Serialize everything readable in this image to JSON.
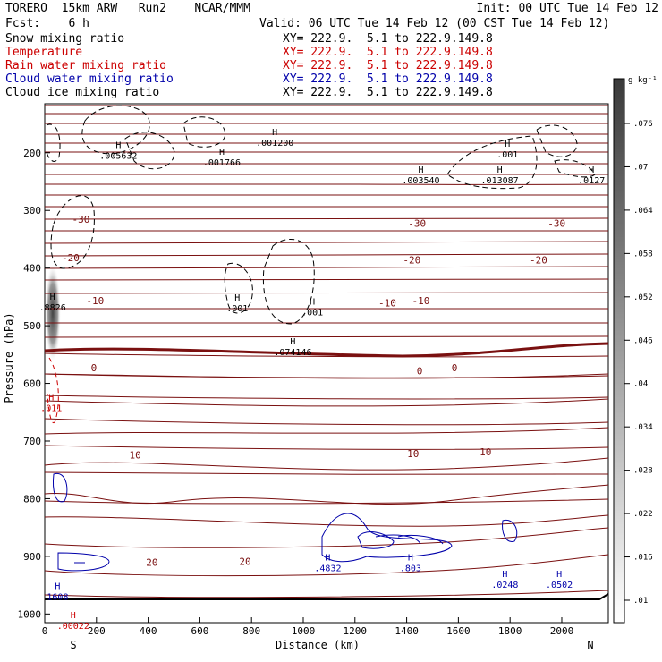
{
  "header": {
    "model": "TORERO  15km ARW   Run2    NCAR/MMM",
    "init": "Init: 00 UTC Tue 14 Feb 12",
    "fcst": "Fcst:    6 h",
    "valid": "Valid: 06 UTC Tue 14 Feb 12 (00 CST Tue 14 Feb 12)"
  },
  "fields": [
    {
      "name": "Snow mixing ratio",
      "xy": "XY= 222.9.  5.1 to 222.9.149.8",
      "color": "#000000"
    },
    {
      "name": "Temperature",
      "xy": "XY= 222.9.  5.1 to 222.9.149.8",
      "color": "#cc0000"
    },
    {
      "name": "Rain water mixing ratio",
      "xy": "XY= 222.9.  5.1 to 222.9.149.8",
      "color": "#cc0000"
    },
    {
      "name": "Cloud water mixing ratio",
      "xy": "XY= 222.9.  5.1 to 222.9.149.8",
      "color": "#0000aa"
    },
    {
      "name": "Cloud ice mixing ratio",
      "xy": "XY= 222.9.  5.1 to 222.9.149.8",
      "color": "#000000"
    }
  ],
  "chart_data": {
    "type": "contour-cross-section",
    "xlabel": "Distance (km)",
    "ylabel": "Pressure (hPa)",
    "xlim": [
      0,
      2180
    ],
    "ylim": [
      1015,
      115
    ],
    "x_ticks": [
      0,
      200,
      400,
      600,
      800,
      1000,
      1200,
      1400,
      1600,
      1800,
      2000
    ],
    "y_ticks": [
      200,
      300,
      400,
      500,
      600,
      700,
      800,
      900,
      1000
    ],
    "end_labels": {
      "left": "S",
      "right": "N"
    },
    "colorbar": {
      "unit": "g kg⁻¹",
      "ticks": [
        ".01",
        ".016",
        ".022",
        ".028",
        ".034",
        ".04",
        ".046",
        ".052",
        ".058",
        ".064",
        ".07",
        ".076"
      ],
      "ramp_colors": [
        "#ffffff",
        "#3a3a3a"
      ]
    },
    "temperature_labels": [
      {
        "text": "-30",
        "x": 140,
        "p": 315
      },
      {
        "text": "-30",
        "x": 1440,
        "p": 322
      },
      {
        "text": "-30",
        "x": 1980,
        "p": 322
      },
      {
        "text": "-20",
        "x": 100,
        "p": 382
      },
      {
        "text": "-20",
        "x": 1420,
        "p": 386
      },
      {
        "text": "-20",
        "x": 1910,
        "p": 386
      },
      {
        "text": "-10",
        "x": 195,
        "p": 456
      },
      {
        "text": "-10",
        "x": 1325,
        "p": 460
      },
      {
        "text": "-10",
        "x": 1455,
        "p": 456
      },
      {
        "text": "0",
        "x": 190,
        "p": 573
      },
      {
        "text": "0",
        "x": 1450,
        "p": 578
      },
      {
        "text": "0",
        "x": 1585,
        "p": 573
      },
      {
        "text": "10",
        "x": 350,
        "p": 724
      },
      {
        "text": "10",
        "x": 1425,
        "p": 722
      },
      {
        "text": "10",
        "x": 1705,
        "p": 719
      },
      {
        "text": "20",
        "x": 415,
        "p": 910
      },
      {
        "text": "20",
        "x": 775,
        "p": 909
      }
    ],
    "extrema_labels": [
      {
        "text": ".005632",
        "x": 285,
        "p": 207,
        "color": "#000000"
      },
      {
        "text": ".001766",
        "x": 685,
        "p": 219,
        "color": "#000000"
      },
      {
        "text": ".001200",
        "x": 890,
        "p": 185,
        "color": "#000000"
      },
      {
        "text": ".003540",
        "x": 1455,
        "p": 250,
        "color": "#000000"
      },
      {
        "text": ".013087",
        "x": 1760,
        "p": 250,
        "color": "#000000"
      },
      {
        "text": ".0127",
        "x": 2115,
        "p": 250,
        "color": "#000000"
      },
      {
        "text": ".001",
        "x": 1790,
        "p": 205,
        "color": "#000000"
      },
      {
        "text": ".001",
        "x": 745,
        "p": 472,
        "color": "#000000"
      },
      {
        "text": ".001",
        "x": 1035,
        "p": 479,
        "color": "#000000"
      },
      {
        "text": ".074146",
        "x": 960,
        "p": 548,
        "color": "#000000"
      },
      {
        "text": ".8826",
        "x": 30,
        "p": 470,
        "color": "#000000"
      },
      {
        "text": ".011",
        "x": 25,
        "p": 645,
        "color": "#cc0000"
      },
      {
        "text": ".00022",
        "x": 110,
        "p": 1023,
        "color": "#cc0000"
      },
      {
        "text": ".4832",
        "x": 1095,
        "p": 923,
        "color": "#0000aa"
      },
      {
        "text": ".803",
        "x": 1415,
        "p": 923,
        "color": "#0000aa"
      },
      {
        "text": ".0248",
        "x": 1780,
        "p": 951,
        "color": "#0000aa"
      },
      {
        "text": ".0502",
        "x": 1990,
        "p": 951,
        "color": "#0000aa"
      },
      {
        "text": "1608",
        "x": 50,
        "p": 972,
        "color": "#0000aa"
      }
    ]
  }
}
